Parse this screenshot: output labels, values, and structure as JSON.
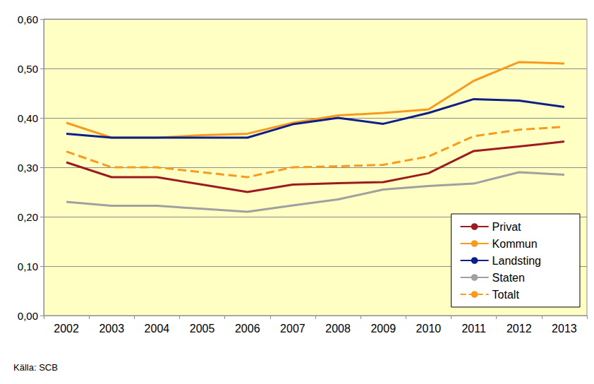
{
  "chart_data": {
    "type": "line",
    "source": "Källa: SCB",
    "categories": [
      "2002",
      "2003",
      "2004",
      "2005",
      "2006",
      "2007",
      "2008",
      "2009",
      "2010",
      "2011",
      "2012",
      "2013"
    ],
    "series": [
      {
        "name": "Privat",
        "color": "#9b1b1e",
        "line_style": "solid",
        "values": [
          0.31,
          0.28,
          0.28,
          0.265,
          0.25,
          0.265,
          0.268,
          0.27,
          0.288,
          0.333,
          0.342,
          0.352
        ]
      },
      {
        "name": "Kommun",
        "color": "#f79a1f",
        "line_style": "solid",
        "values": [
          0.39,
          0.36,
          0.36,
          0.365,
          0.368,
          0.39,
          0.405,
          0.41,
          0.417,
          0.475,
          0.513,
          0.51
        ]
      },
      {
        "name": "Landsting",
        "color": "#0b1e8a",
        "line_style": "solid",
        "values": [
          0.368,
          0.36,
          0.36,
          0.36,
          0.36,
          0.387,
          0.4,
          0.388,
          0.41,
          0.438,
          0.435,
          0.422
        ]
      },
      {
        "name": "Staten",
        "color": "#a0a0a0",
        "line_style": "solid",
        "values": [
          0.23,
          0.222,
          0.222,
          0.216,
          0.21,
          0.223,
          0.235,
          0.255,
          0.262,
          0.267,
          0.29,
          0.285
        ]
      },
      {
        "name": "Totalt",
        "color": "#f79a1f",
        "line_style": "dashed",
        "values": [
          0.332,
          0.3,
          0.3,
          0.29,
          0.28,
          0.3,
          0.302,
          0.305,
          0.322,
          0.363,
          0.376,
          0.382
        ]
      }
    ],
    "ylim": [
      0,
      0.6
    ],
    "yticks": [
      {
        "value": 0,
        "label": "0,00"
      },
      {
        "value": 0.1,
        "label": "0,10"
      },
      {
        "value": 0.2,
        "label": "0,20"
      },
      {
        "value": 0.3,
        "label": "0,30"
      },
      {
        "value": 0.4,
        "label": "0,40"
      },
      {
        "value": 0.5,
        "label": "0,50"
      },
      {
        "value": 0.6,
        "label": "0,60"
      }
    ],
    "grid": true,
    "legend": "lower right"
  }
}
